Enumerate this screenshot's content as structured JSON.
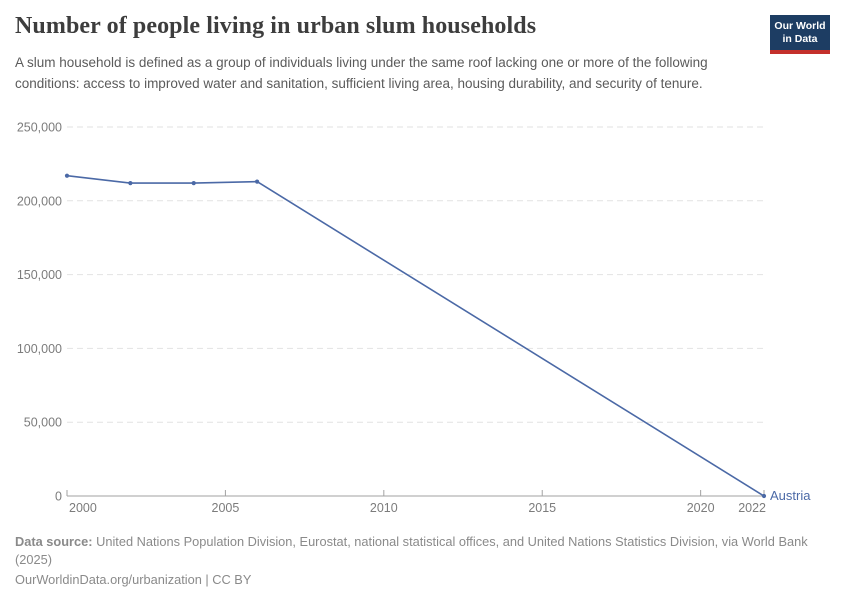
{
  "header": {
    "title": "Number of people living in urban slum households",
    "subtitle": "A slum household is defined as a group of individuals living under the same roof lacking one or more of the following conditions: access to improved water and sanitation, sufficient living area, housing durability, and security of tenure.",
    "logo": {
      "line1": "Our World",
      "line2": "in Data",
      "background_color": "#1d3d63",
      "bar_color": "#c4302b"
    }
  },
  "chart_data": {
    "type": "line",
    "title": "Number of people living in urban slum households",
    "xlabel": "",
    "ylabel": "",
    "xlim": [
      2000,
      2022
    ],
    "ylim": [
      0,
      250000
    ],
    "xticks": [
      2000,
      2005,
      2010,
      2015,
      2020,
      2022
    ],
    "yticks": [
      0,
      50000,
      100000,
      150000,
      200000,
      250000
    ],
    "grid": "horizontal-dashed",
    "legend_position": "end-of-line",
    "series": [
      {
        "name": "Austria",
        "color": "#4b69a6",
        "x": [
          2000,
          2002,
          2004,
          2006,
          2022
        ],
        "y": [
          217000,
          212000,
          212000,
          213000,
          0
        ]
      }
    ]
  },
  "footer": {
    "datasource_label": "Data source:",
    "datasource_text": "United Nations Population Division, Eurostat, national statistical offices, and United Nations Statistics Division, via World Bank (2025)",
    "note": "OurWorldinData.org/urbanization | CC BY"
  },
  "colors": {
    "line": "#4b69a6",
    "gridline": "#e2e2e2",
    "axis": "#a2a2a2",
    "tick_label": "#7c7c7c",
    "title_text": "#3d3d3d",
    "subtitle_text": "#5b5b5b",
    "footer_text": "#8a8a8a"
  }
}
